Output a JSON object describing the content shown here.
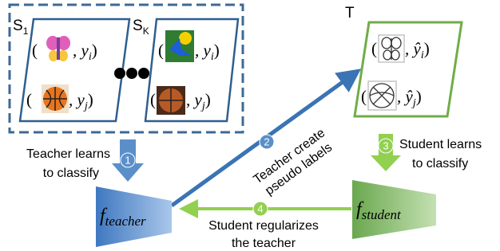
{
  "sets": [
    {
      "name": "S",
      "sub": "1",
      "items": [
        {
          "open": "(",
          "rest": ", y",
          "sub": "i",
          "close": ")"
        },
        {
          "open": "(",
          "rest": ", y",
          "sub": "j",
          "close": ")"
        }
      ]
    },
    {
      "name": "S",
      "sub": "K",
      "items": [
        {
          "open": "(",
          "rest": ", y",
          "sub": "i",
          "close": ")"
        },
        {
          "open": "(",
          "rest": ", y",
          "sub": "j",
          "close": ")"
        }
      ]
    },
    {
      "name": "T",
      "items": [
        {
          "open": "(",
          "rest": ", ŷ",
          "sub": "i",
          "close": ")"
        },
        {
          "open": "(",
          "rest": ", ŷ",
          "sub": "j",
          "close": ")"
        }
      ]
    }
  ],
  "models": {
    "teacher": {
      "symbol": "f",
      "sub": "teacher"
    },
    "student": {
      "symbol": "f",
      "sub": "student"
    }
  },
  "steps": [
    {
      "number": "1",
      "lines": [
        "Teacher learns",
        "to classify"
      ]
    },
    {
      "number": "2",
      "lines": [
        "Teacher create",
        "pseudo labels"
      ]
    },
    {
      "number": "3",
      "lines": [
        "Student learns",
        "to classify"
      ]
    },
    {
      "number": "4",
      "lines": [
        "Student regularizes",
        "the teacher"
      ]
    }
  ]
}
